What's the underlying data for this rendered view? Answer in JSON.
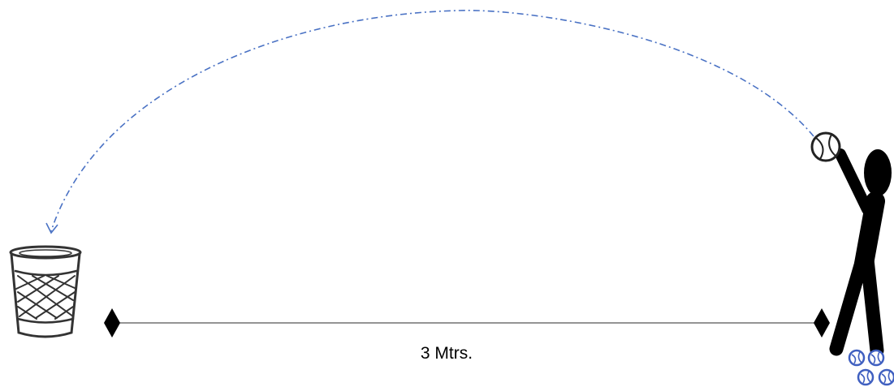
{
  "distance_label": "3 Mtrs.",
  "colors": {
    "trajectory": "#4a72c4",
    "ball_pile": "#3f5fc0",
    "figure": "#000000"
  },
  "icons": [
    "waste-basket-icon",
    "thrower-figure-icon",
    "tennis-ball-icon",
    "ball-pile-icon"
  ]
}
